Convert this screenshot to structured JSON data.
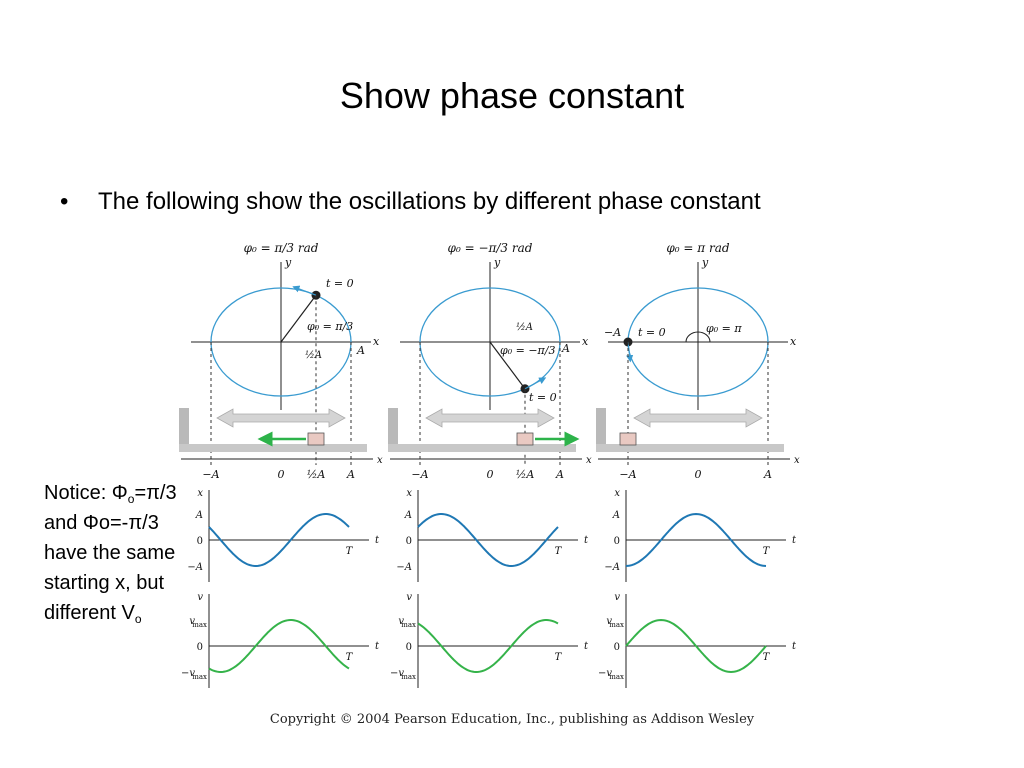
{
  "title": "Show phase constant",
  "bullet": {
    "symbol": "•",
    "text": "The following show the oscillations by different phase constant"
  },
  "notice": {
    "line1_pre": "Notice: Φ",
    "line1_sub": "o",
    "line1_post": "=π/3",
    "line2": "and Φo=-π/3",
    "line3": "have the same",
    "line4": "starting x, but",
    "line5_pre": "different V",
    "line5_sub": "o"
  },
  "copyright": "Copyright © 2004 Pearson Education, Inc., publishing as Addison Wesley",
  "panels": [
    {
      "phase_label": "φ₀ = π/3 rad",
      "t0_label": "t = 0",
      "angle_label": "φ₀ = π/3",
      "half_label": "½A",
      "amp_label": "A",
      "neg_amp_label": "",
      "track_ticks": [
        "−A",
        "0",
        "½A",
        "A"
      ],
      "block_velocity": "left",
      "phase_rad": 1.0472
    },
    {
      "phase_label": "φ₀ = −π/3 rad",
      "t0_label": "t = 0",
      "angle_label": "φ₀ = −π/3",
      "half_label": "½A",
      "amp_label": "A",
      "neg_amp_label": "",
      "track_ticks": [
        "−A",
        "0",
        "½A",
        "A"
      ],
      "block_velocity": "right",
      "phase_rad": -1.0472
    },
    {
      "phase_label": "φ₀ = π rad",
      "t0_label": "t = 0",
      "angle_label": "φ₀ = π",
      "half_label": "",
      "amp_label": "",
      "neg_amp_label": "−A",
      "track_ticks": [
        "−A",
        "0",
        "A"
      ],
      "block_velocity": "none",
      "phase_rad": 3.14159
    }
  ],
  "axis_labels": {
    "x": "x",
    "y": "y",
    "t": "t",
    "v": "v",
    "T": "T",
    "A": "A",
    "negA": "−A",
    "zero": "0",
    "vmax": "v",
    "vmax_sub": "max",
    "neg_vmax": "−v"
  },
  "colors": {
    "circle": "#3a9bd0",
    "x_curve": "#1f78b4",
    "v_curve": "#35b34a",
    "arrow_green": "#2db34a",
    "track": "#c8c8c8",
    "wall": "#b9b9b9",
    "block": "#e9c9c2"
  }
}
